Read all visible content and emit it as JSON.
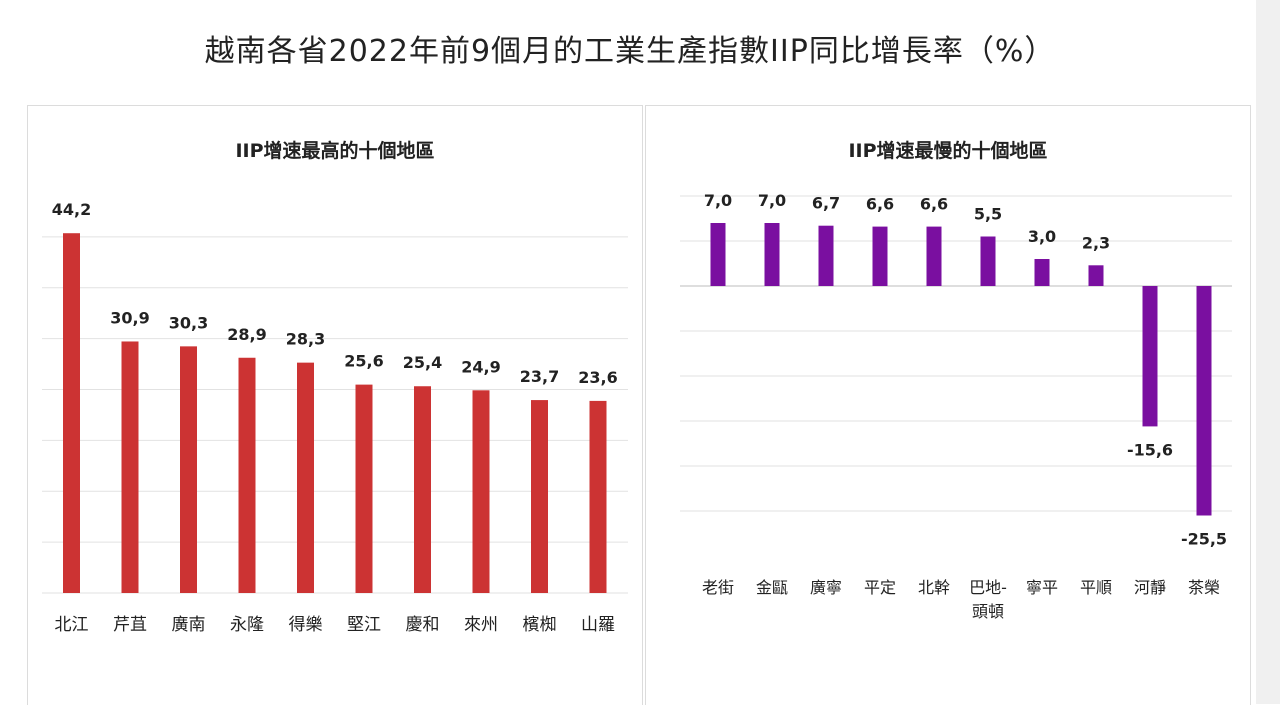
{
  "title": "越南各省2022年前9個月的工業生產指數IIP同比增長率（%）",
  "chart_data": [
    {
      "type": "bar",
      "title": "IIP增速最高的十個地區",
      "color": "#cc3333",
      "categories": [
        "北江",
        "芹苴",
        "廣南",
        "永隆",
        "得樂",
        "堅江",
        "慶和",
        "來州",
        "檳椥",
        "山羅"
      ],
      "values": [
        44.2,
        30.9,
        30.3,
        28.9,
        28.3,
        25.6,
        25.4,
        24.9,
        23.7,
        23.6
      ],
      "labels": [
        "44,2",
        "30,9",
        "30,3",
        "28,9",
        "28,3",
        "25,6",
        "25,4",
        "24,9",
        "23,7",
        "23,6"
      ],
      "ylim": [
        0,
        50
      ],
      "grid": true
    },
    {
      "type": "bar",
      "title": "IIP增速最慢的十個地區",
      "color": "#7a0fa0",
      "categories": [
        "老街",
        "金甌",
        "廣寧",
        "平定",
        "北幹",
        "巴地-頭頓",
        "寧平",
        "平順",
        "河靜",
        "茶榮"
      ],
      "category_lines": [
        [
          "老街"
        ],
        [
          "金甌"
        ],
        [
          "廣寧"
        ],
        [
          "平定"
        ],
        [
          "北幹"
        ],
        [
          "巴地-",
          "頭頓"
        ],
        [
          "寧平"
        ],
        [
          "平順"
        ],
        [
          "河靜"
        ],
        [
          "茶榮"
        ]
      ],
      "values": [
        7.0,
        7.0,
        6.7,
        6.6,
        6.6,
        5.5,
        3.0,
        2.3,
        -15.6,
        -25.5
      ],
      "labels": [
        "7,0",
        "7,0",
        "6,7",
        "6,6",
        "6,6",
        "5,5",
        "3,0",
        "2,3",
        "-15,6",
        "-25,5"
      ],
      "ylim": [
        -30,
        10
      ],
      "grid": true
    }
  ]
}
